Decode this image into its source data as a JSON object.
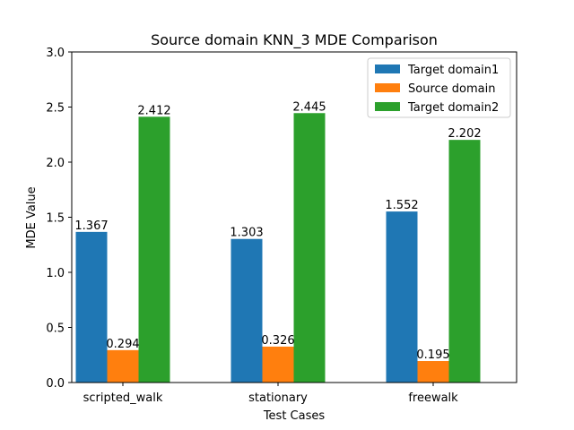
{
  "chart_data": {
    "type": "bar",
    "title": "Source domain KNN_3 MDE Comparison",
    "xlabel": "Test Cases",
    "ylabel": "MDE Value",
    "categories": [
      "scripted_walk",
      "stationary",
      "freewalk"
    ],
    "series": [
      {
        "name": "Target domain1",
        "color": "#1f77b4",
        "values": [
          1.367,
          1.303,
          1.552
        ]
      },
      {
        "name": "Source domain",
        "color": "#ff7f0e",
        "values": [
          0.294,
          0.326,
          0.195
        ]
      },
      {
        "name": "Target domain2",
        "color": "#2ca02c",
        "values": [
          2.412,
          2.445,
          2.202
        ]
      }
    ],
    "data_labels": [
      [
        "1.367",
        "1.303",
        "1.552"
      ],
      [
        "0.294",
        "0.326",
        "0.195"
      ],
      [
        "2.412",
        "2.445",
        "2.202"
      ]
    ],
    "ylim": [
      0,
      3.0
    ],
    "yticks": [
      "0.0",
      "0.5",
      "1.0",
      "1.5",
      "2.0",
      "2.5",
      "3.0"
    ],
    "grid": false,
    "legend_position": "top-right"
  }
}
